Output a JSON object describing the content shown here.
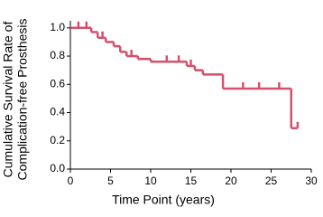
{
  "chart_data": {
    "type": "step",
    "ylabel": [
      "Cumulative Survival Rate of",
      "Complication-free Prosthesis"
    ],
    "xlabel": "Time Point (years)",
    "x": [
      0,
      2.6,
      3.4,
      4.4,
      5.4,
      6.2,
      7,
      8.4,
      10,
      14.5,
      15.5,
      16.5,
      19,
      27.5,
      28.3
    ],
    "values": [
      1.0,
      0.97,
      0.93,
      0.9,
      0.87,
      0.83,
      0.8,
      0.78,
      0.76,
      0.73,
      0.7,
      0.67,
      0.57,
      0.29,
      0.29
    ],
    "censor_x": [
      1,
      2,
      4,
      7.6,
      12,
      13.5,
      15,
      21.5,
      23.5,
      26,
      28.3
    ],
    "censor_values": [
      1.0,
      1.0,
      0.93,
      0.8,
      0.76,
      0.76,
      0.73,
      0.57,
      0.57,
      0.57,
      0.29
    ],
    "color": "#d4506c",
    "xlim": [
      0,
      30
    ],
    "xticks": [
      0,
      5,
      10,
      15,
      20,
      25,
      30
    ],
    "ylim": [
      0,
      1.05
    ],
    "yticks": [
      {
        "value": 0,
        "label": "0.0"
      },
      0.2,
      0.4,
      0.6,
      0.8,
      {
        "value": 1,
        "label": "1.0"
      }
    ]
  }
}
